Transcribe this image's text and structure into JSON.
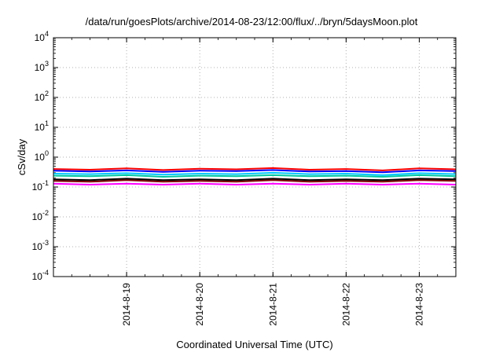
{
  "chart_data": {
    "type": "line",
    "title": "/data/run/goesPlots/archive/2014-08-23/12:00/flux/../bryn/5daysMoon.plot",
    "xlabel": "Coordinated Universal Time (UTC)",
    "ylabel": "cSv/day",
    "xlim": [
      "2014-08-18 00:00",
      "2014-08-23 12:00"
    ],
    "ylim": [
      0.0001,
      10000
    ],
    "yscale": "log",
    "grid": true,
    "x_ticks": [
      "2014-8-19",
      "2014-8-20",
      "2014-8-21",
      "2014-8-22",
      "2014-8-23"
    ],
    "y_ticks": [
      {
        "base": "10",
        "exp": "4"
      },
      {
        "base": "10",
        "exp": "3"
      },
      {
        "base": "10",
        "exp": "2"
      },
      {
        "base": "10",
        "exp": "1"
      },
      {
        "base": "10",
        "exp": "0"
      },
      {
        "base": "10",
        "exp": "-1"
      },
      {
        "base": "10",
        "exp": "-2"
      },
      {
        "base": "10",
        "exp": "-3"
      },
      {
        "base": "10",
        "exp": "-4"
      }
    ],
    "x": [
      "2014-08-18 00:00",
      "2014-08-18 12:00",
      "2014-08-19 00:00",
      "2014-08-19 12:00",
      "2014-08-20 00:00",
      "2014-08-20 12:00",
      "2014-08-21 00:00",
      "2014-08-21 12:00",
      "2014-08-22 00:00",
      "2014-08-22 12:00",
      "2014-08-23 00:00",
      "2014-08-23 12:00"
    ],
    "series": [
      {
        "color": "#ff0000",
        "values": [
          0.4,
          0.38,
          0.42,
          0.37,
          0.41,
          0.39,
          0.43,
          0.38,
          0.4,
          0.36,
          0.42,
          0.39
        ]
      },
      {
        "color": "#0000ff",
        "values": [
          0.35,
          0.33,
          0.36,
          0.32,
          0.35,
          0.34,
          0.37,
          0.33,
          0.34,
          0.31,
          0.36,
          0.34
        ]
      },
      {
        "color": "#00c8ff",
        "values": [
          0.28,
          0.27,
          0.29,
          0.26,
          0.28,
          0.27,
          0.3,
          0.27,
          0.28,
          0.25,
          0.29,
          0.27
        ]
      },
      {
        "color": "#00c8a0",
        "values": [
          0.24,
          0.23,
          0.25,
          0.22,
          0.24,
          0.23,
          0.25,
          0.23,
          0.24,
          0.22,
          0.25,
          0.23
        ]
      },
      {
        "color": "#000000",
        "values": [
          0.18,
          0.17,
          0.19,
          0.17,
          0.18,
          0.17,
          0.19,
          0.17,
          0.18,
          0.17,
          0.19,
          0.18
        ]
      },
      {
        "color": "#800000",
        "values": [
          0.16,
          0.15,
          0.17,
          0.15,
          0.16,
          0.15,
          0.17,
          0.15,
          0.16,
          0.15,
          0.17,
          0.16
        ]
      },
      {
        "color": "#ff00ff",
        "values": [
          0.13,
          0.12,
          0.13,
          0.12,
          0.13,
          0.12,
          0.13,
          0.12,
          0.13,
          0.12,
          0.13,
          0.12
        ]
      }
    ]
  }
}
